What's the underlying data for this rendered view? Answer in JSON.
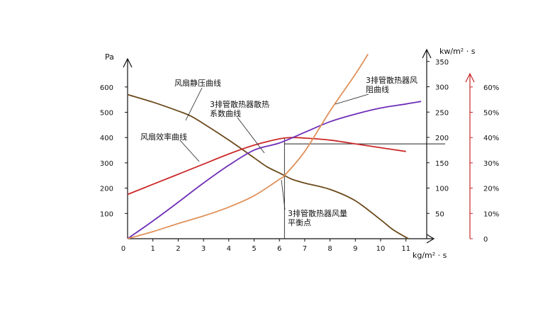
{
  "chart_data": {
    "type": "line",
    "x": {
      "unit": "kg/m² · s",
      "ticks": [
        "0",
        "1",
        "2",
        "3",
        "4",
        "5",
        "6",
        "7",
        "8",
        "9",
        "10",
        "11"
      ],
      "range": [
        0,
        12
      ]
    },
    "y_left": {
      "unit": "Pa",
      "ticks": [
        "100",
        "200",
        "300",
        "400",
        "500",
        "600"
      ],
      "range": [
        0,
        700
      ]
    },
    "y_right": {
      "unit": "kw/m² · s",
      "ticks": [
        "50",
        "100",
        "150",
        "200",
        "250",
        "300",
        "350"
      ],
      "range": [
        0,
        350
      ]
    },
    "y_right2": {
      "ticks": [
        "0",
        "10%",
        "20%",
        "30%",
        "40%",
        "50%",
        "60%"
      ],
      "range": [
        0,
        70
      ],
      "color": "#c62828"
    },
    "series": [
      {
        "name": "风扇静压曲线",
        "axis": "left",
        "color": "#6b4a1b",
        "points": [
          [
            0,
            570
          ],
          [
            1,
            540
          ],
          [
            2,
            505
          ],
          [
            2.5,
            485
          ],
          [
            3,
            455
          ],
          [
            4,
            390
          ],
          [
            5,
            320
          ],
          [
            5.5,
            285
          ],
          [
            6,
            260
          ],
          [
            6.2,
            250
          ],
          [
            6.5,
            235
          ],
          [
            7,
            220
          ],
          [
            8,
            195
          ],
          [
            9,
            150
          ],
          [
            10,
            75
          ],
          [
            10.5,
            35
          ],
          [
            11.1,
            0
          ]
        ]
      },
      {
        "name": "风扇效率曲线",
        "axis": "right2",
        "color": "#cc2a2a",
        "points": [
          [
            0,
            17.5
          ],
          [
            1,
            21.5
          ],
          [
            2,
            25.5
          ],
          [
            3,
            29.5
          ],
          [
            4,
            33.5
          ],
          [
            5,
            37
          ],
          [
            6,
            39.5
          ],
          [
            6.5,
            40
          ],
          [
            7,
            39.8
          ],
          [
            8,
            39
          ],
          [
            9,
            37.5
          ],
          [
            10,
            36
          ],
          [
            11,
            34.5
          ]
        ]
      },
      {
        "name": "3排管散热器散热系数曲线",
        "axis": "right",
        "color": "#6e2fb8",
        "points": [
          [
            0,
            0
          ],
          [
            1,
            35
          ],
          [
            2,
            72
          ],
          [
            3,
            110
          ],
          [
            4,
            145
          ],
          [
            5,
            175
          ],
          [
            6,
            189
          ],
          [
            7,
            210
          ],
          [
            8,
            231
          ],
          [
            9,
            246
          ],
          [
            10,
            258
          ],
          [
            11,
            266
          ],
          [
            11.6,
            271
          ]
        ]
      },
      {
        "name": "3排管散热器风阻曲线",
        "axis": "left",
        "color": "#e0915a",
        "points": [
          [
            0,
            0
          ],
          [
            1,
            28
          ],
          [
            2,
            60
          ],
          [
            3,
            90
          ],
          [
            4,
            125
          ],
          [
            5,
            170
          ],
          [
            6,
            235
          ],
          [
            6.2,
            250
          ],
          [
            7,
            345
          ],
          [
            8,
            505
          ],
          [
            9,
            650
          ],
          [
            9.5,
            730
          ]
        ]
      }
    ],
    "annotations": [
      {
        "label": "风扇静压曲线"
      },
      {
        "label": "3排管散热器散热系数曲线"
      },
      {
        "label": "风扇效率曲线"
      },
      {
        "label": "3排管散热器风阻曲线"
      },
      {
        "label": "3排管散热器风量平衡点",
        "at": [
          6.2,
          250
        ]
      }
    ],
    "grid": false
  }
}
